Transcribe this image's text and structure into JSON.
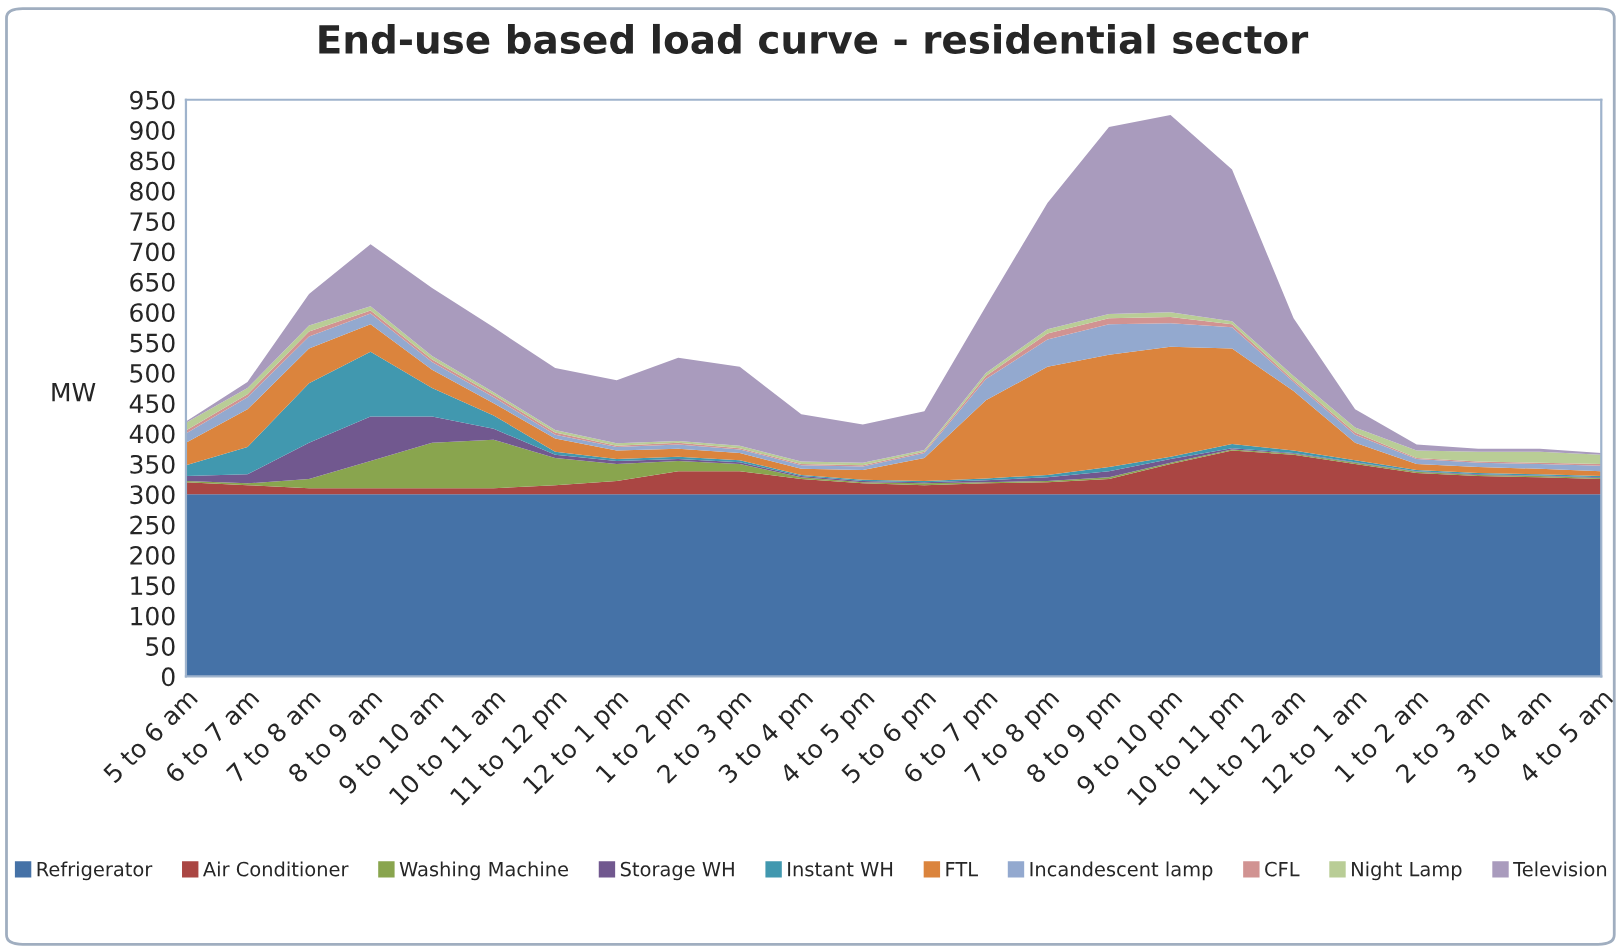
{
  "chart_data": {
    "type": "area",
    "title": "End-use based load curve - residential sector",
    "ylabel": "MW",
    "stacked": true,
    "categories": [
      "5 to 6 am",
      "6 to 7 am",
      "7 to 8 am",
      "8 to 9 am",
      "9 to 10 am",
      "10 to 11 am",
      "11 to 12 pm",
      "12 to 1 pm",
      "1 to 2 pm",
      "2 to 3 pm",
      "3 to 4 pm",
      "4 to 5 pm",
      "5 to 6 pm",
      "6 to 7 pm",
      "7 to 8 pm",
      "8 to 9 pm",
      "9 to 10 pm",
      "10 to 11 pm",
      "11 to 12 am",
      "12 to 1 am",
      "1 to 2 am",
      "2 to 3 am",
      "3 to 4 am",
      "4 to 5 am"
    ],
    "series": [
      {
        "name": "Refrigerator",
        "color": "#4572a7",
        "values": [
          300,
          300,
          300,
          300,
          300,
          300,
          300,
          300,
          300,
          300,
          300,
          300,
          300,
          300,
          300,
          300,
          300,
          300,
          300,
          300,
          300,
          300,
          300,
          300
        ]
      },
      {
        "name": "Air Conditioner",
        "color": "#aa4643",
        "values": [
          20,
          15,
          10,
          10,
          10,
          10,
          15,
          22,
          38,
          38,
          25,
          18,
          15,
          18,
          20,
          25,
          50,
          72,
          65,
          50,
          35,
          30,
          28,
          25
        ]
      },
      {
        "name": "Washing Machine",
        "color": "#89a54e",
        "values": [
          2,
          3,
          15,
          45,
          75,
          80,
          45,
          28,
          17,
          12,
          3,
          2,
          3,
          2,
          2,
          3,
          2,
          2,
          2,
          2,
          2,
          2,
          2,
          2
        ]
      },
      {
        "name": "Storage WH",
        "color": "#71588f",
        "values": [
          8,
          15,
          60,
          73,
          43,
          18,
          5,
          5,
          3,
          3,
          2,
          2,
          2,
          3,
          6,
          10,
          6,
          2,
          1,
          1,
          1,
          1,
          1,
          1
        ]
      },
      {
        "name": "Instant WH",
        "color": "#4198af",
        "values": [
          18,
          45,
          98,
          107,
          47,
          22,
          5,
          3,
          4,
          3,
          2,
          2,
          2,
          3,
          4,
          7,
          4,
          7,
          4,
          3,
          2,
          2,
          2,
          2
        ]
      },
      {
        "name": "FTL",
        "color": "#db843d",
        "values": [
          37,
          62,
          57,
          45,
          30,
          20,
          22,
          14,
          13,
          12,
          10,
          16,
          38,
          129,
          178,
          185,
          181,
          157,
          98,
          29,
          10,
          10,
          9,
          8
        ]
      },
      {
        "name": "Incandescent lamp",
        "color": "#93a9cf",
        "values": [
          15,
          20,
          20,
          18,
          13,
          10,
          6,
          6,
          7,
          6,
          6,
          6,
          8,
          35,
          45,
          50,
          39,
          35,
          15,
          13,
          8,
          7,
          8,
          9
        ]
      },
      {
        "name": "CFL",
        "color": "#d19392",
        "values": [
          5,
          5,
          8,
          5,
          4,
          4,
          4,
          2,
          3,
          2,
          2,
          2,
          2,
          5,
          10,
          10,
          10,
          5,
          3,
          4,
          2,
          2,
          2,
          3
        ]
      },
      {
        "name": "Night Lamp",
        "color": "#b9cd96",
        "values": [
          13,
          10,
          10,
          7,
          6,
          4,
          4,
          4,
          3,
          4,
          4,
          4,
          3,
          5,
          7,
          7,
          8,
          5,
          7,
          8,
          12,
          16,
          18,
          15
        ]
      },
      {
        "name": "Television",
        "color": "#a99bbd",
        "values": [
          2,
          10,
          52,
          102,
          112,
          107,
          102,
          104,
          137,
          130,
          78,
          63,
          64,
          110,
          208,
          308,
          325,
          250,
          95,
          30,
          10,
          5,
          5,
          3
        ]
      }
    ],
    "ylim": [
      0,
      950
    ],
    "yticks": [
      0,
      50,
      100,
      150,
      200,
      250,
      300,
      350,
      400,
      450,
      500,
      550,
      600,
      650,
      700,
      750,
      800,
      850,
      900,
      950
    ],
    "grid": false,
    "legend": "bottom"
  }
}
